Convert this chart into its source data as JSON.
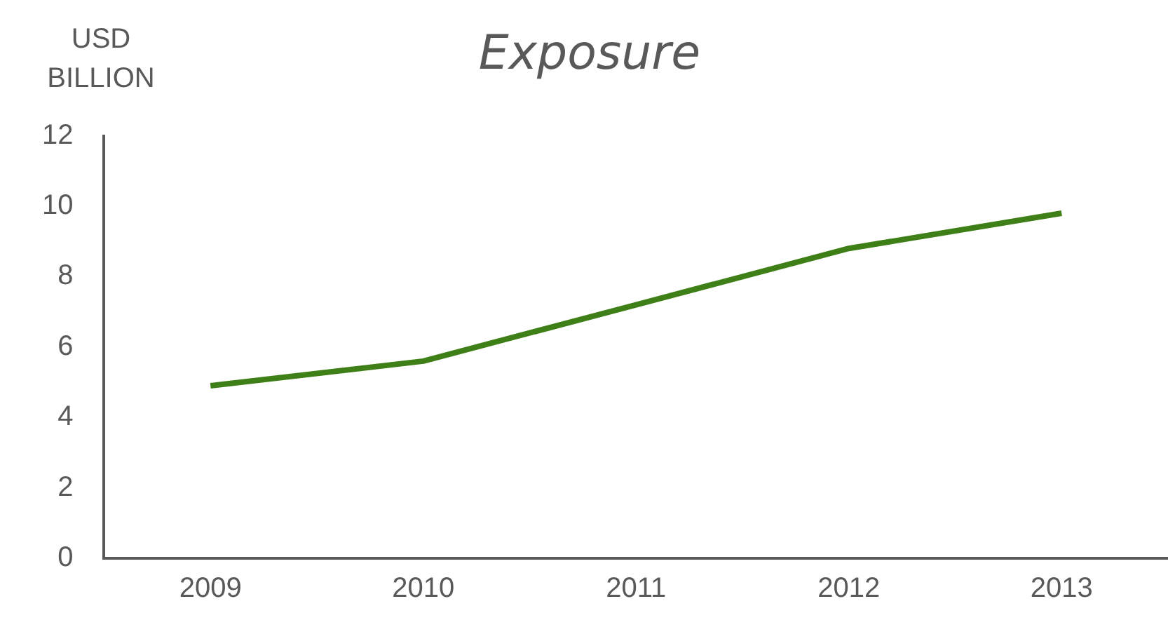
{
  "chart_data": {
    "type": "line",
    "title": "Exposure",
    "ylabel": "USD BILLION",
    "categories": [
      "2009",
      "2010",
      "2011",
      "2012",
      "2013"
    ],
    "series": [
      {
        "color": "#3f7f17",
        "values": [
          4.9,
          5.6,
          7.2,
          8.8,
          9.8
        ]
      }
    ],
    "ylim": [
      0,
      12
    ],
    "yticks": [
      0,
      2,
      4,
      6,
      8,
      10,
      12
    ],
    "grid": false,
    "legend": false,
    "marker": "none",
    "line_style": "solid"
  }
}
